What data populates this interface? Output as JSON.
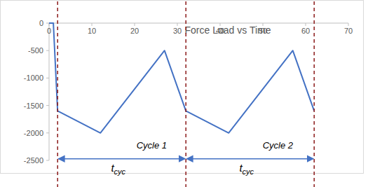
{
  "chart_data": {
    "type": "line",
    "title": "Force Load vs Time",
    "x": [
      0,
      1,
      2,
      12,
      27,
      32,
      42,
      57,
      62
    ],
    "values": [
      0,
      0,
      -1600,
      -2000,
      -500,
      -1600,
      -2000,
      -500,
      -1600
    ],
    "color": "#4472c4",
    "xlim": [
      0,
      70
    ],
    "xticks": [
      0,
      10,
      20,
      30,
      40,
      50,
      60,
      70
    ],
    "ylim": [
      -2500,
      0
    ],
    "yticks": [
      -2500,
      -2000,
      -1500,
      -1000,
      -500,
      0
    ],
    "grid": false,
    "vlines": [
      2,
      32,
      62
    ],
    "annotations": [
      {
        "text": "Cycle 1",
        "x": 24,
        "y": -2280
      },
      {
        "text": "Cycle 2",
        "x": 53.5,
        "y": -2280
      }
    ],
    "spans": [
      {
        "from": 2,
        "to": 32,
        "y": -2470,
        "label": "t",
        "subscript": "cyc",
        "label_x": 14.5,
        "label_y": -2700
      },
      {
        "from": 32,
        "to": 62,
        "y": -2470,
        "label": "t",
        "subscript": "cyc",
        "label_x": 44.5,
        "label_y": -2700
      }
    ]
  }
}
